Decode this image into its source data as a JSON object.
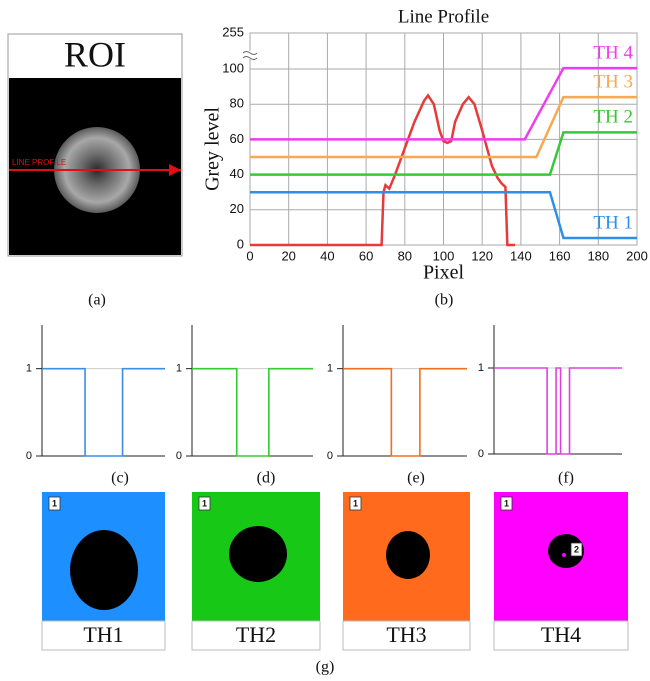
{
  "panels": {
    "roi": {
      "title": "ROI",
      "line_label": "LINE PROFILE"
    },
    "captions": [
      "(a)",
      "(b)",
      "(c)",
      "(d)",
      "(e)",
      "(f)",
      "(g)"
    ],
    "threshold_images": [
      {
        "label": "TH1",
        "region": "1",
        "color": "#1e8fff"
      },
      {
        "label": "TH2",
        "region": "1",
        "color": "#17c817"
      },
      {
        "label": "TH3",
        "region": "1",
        "color": "#ff6a1c"
      },
      {
        "label": "TH4",
        "region": "1",
        "inner_region": "2",
        "color": "#ff00ff"
      }
    ]
  },
  "chart_data": [
    {
      "type": "line",
      "title": "Line Profile",
      "x_label": "Pixel",
      "y_label": "Grey level",
      "xlim": [
        0,
        200
      ],
      "xticks": [
        0,
        20,
        40,
        60,
        80,
        100,
        120,
        140,
        160,
        180,
        200
      ],
      "ylim": [
        0,
        255
      ],
      "yticks": [
        0,
        20,
        40,
        60,
        80,
        100,
        255
      ],
      "axis_break": [
        100,
        255
      ],
      "grid": true,
      "series": [
        {
          "color": "#e8393b",
          "x": [
            0,
            68,
            69,
            70,
            72,
            75,
            80,
            85,
            90,
            92,
            95,
            98,
            100,
            102,
            104,
            106,
            110,
            113,
            116,
            120,
            125,
            128,
            130,
            132,
            133,
            135,
            137
          ],
          "values": [
            0,
            0,
            30,
            34,
            32,
            40,
            55,
            70,
            82,
            85,
            80,
            65,
            59,
            58,
            59,
            70,
            80,
            84,
            80,
            65,
            45,
            38,
            35,
            33,
            0,
            0,
            0
          ]
        },
        {
          "name": "TH 4",
          "color": "#f03cf0",
          "x": [
            0,
            142,
            162,
            200
          ],
          "values": [
            60,
            60,
            104,
            104
          ]
        },
        {
          "name": "TH 3",
          "color": "#f7a850",
          "x": [
            0,
            148,
            162,
            200
          ],
          "values": [
            50,
            50,
            84,
            84
          ]
        },
        {
          "name": "TH 2",
          "color": "#35c935",
          "x": [
            0,
            155,
            162,
            200
          ],
          "values": [
            40,
            40,
            64,
            64
          ]
        },
        {
          "name": "TH 1",
          "color": "#2d8fe8",
          "x": [
            0,
            155,
            162,
            200
          ],
          "values": [
            30,
            30,
            4,
            4
          ]
        }
      ]
    },
    {
      "type": "step",
      "xlim": [
        0,
        200
      ],
      "ylim": [
        0,
        1.5
      ],
      "yticks": [
        0,
        1
      ],
      "color": "#3a8ee6",
      "x": [
        0,
        70,
        70,
        131,
        131,
        200
      ],
      "values": [
        1,
        1,
        0,
        0,
        1,
        1
      ]
    },
    {
      "type": "step",
      "xlim": [
        0,
        200
      ],
      "ylim": [
        0,
        1.5
      ],
      "yticks": [
        0,
        1
      ],
      "color": "#33cc33",
      "x": [
        0,
        74,
        74,
        127,
        127,
        200
      ],
      "values": [
        1,
        1,
        0,
        0,
        1,
        1
      ]
    },
    {
      "type": "step",
      "xlim": [
        0,
        200
      ],
      "ylim": [
        0,
        1.5
      ],
      "yticks": [
        0,
        1
      ],
      "color": "#f07020",
      "x": [
        0,
        78,
        78,
        124,
        124,
        200
      ],
      "values": [
        1,
        1,
        0,
        0,
        1,
        1
      ]
    },
    {
      "type": "step",
      "xlim": [
        0,
        200
      ],
      "ylim": [
        0,
        1.5
      ],
      "yticks": [
        0,
        1
      ],
      "color": "#e040e0",
      "x": [
        0,
        83,
        83,
        97,
        97,
        104,
        104,
        118,
        118,
        200
      ],
      "values": [
        1,
        1,
        0,
        0,
        1,
        1,
        0,
        0,
        1,
        1
      ]
    }
  ]
}
